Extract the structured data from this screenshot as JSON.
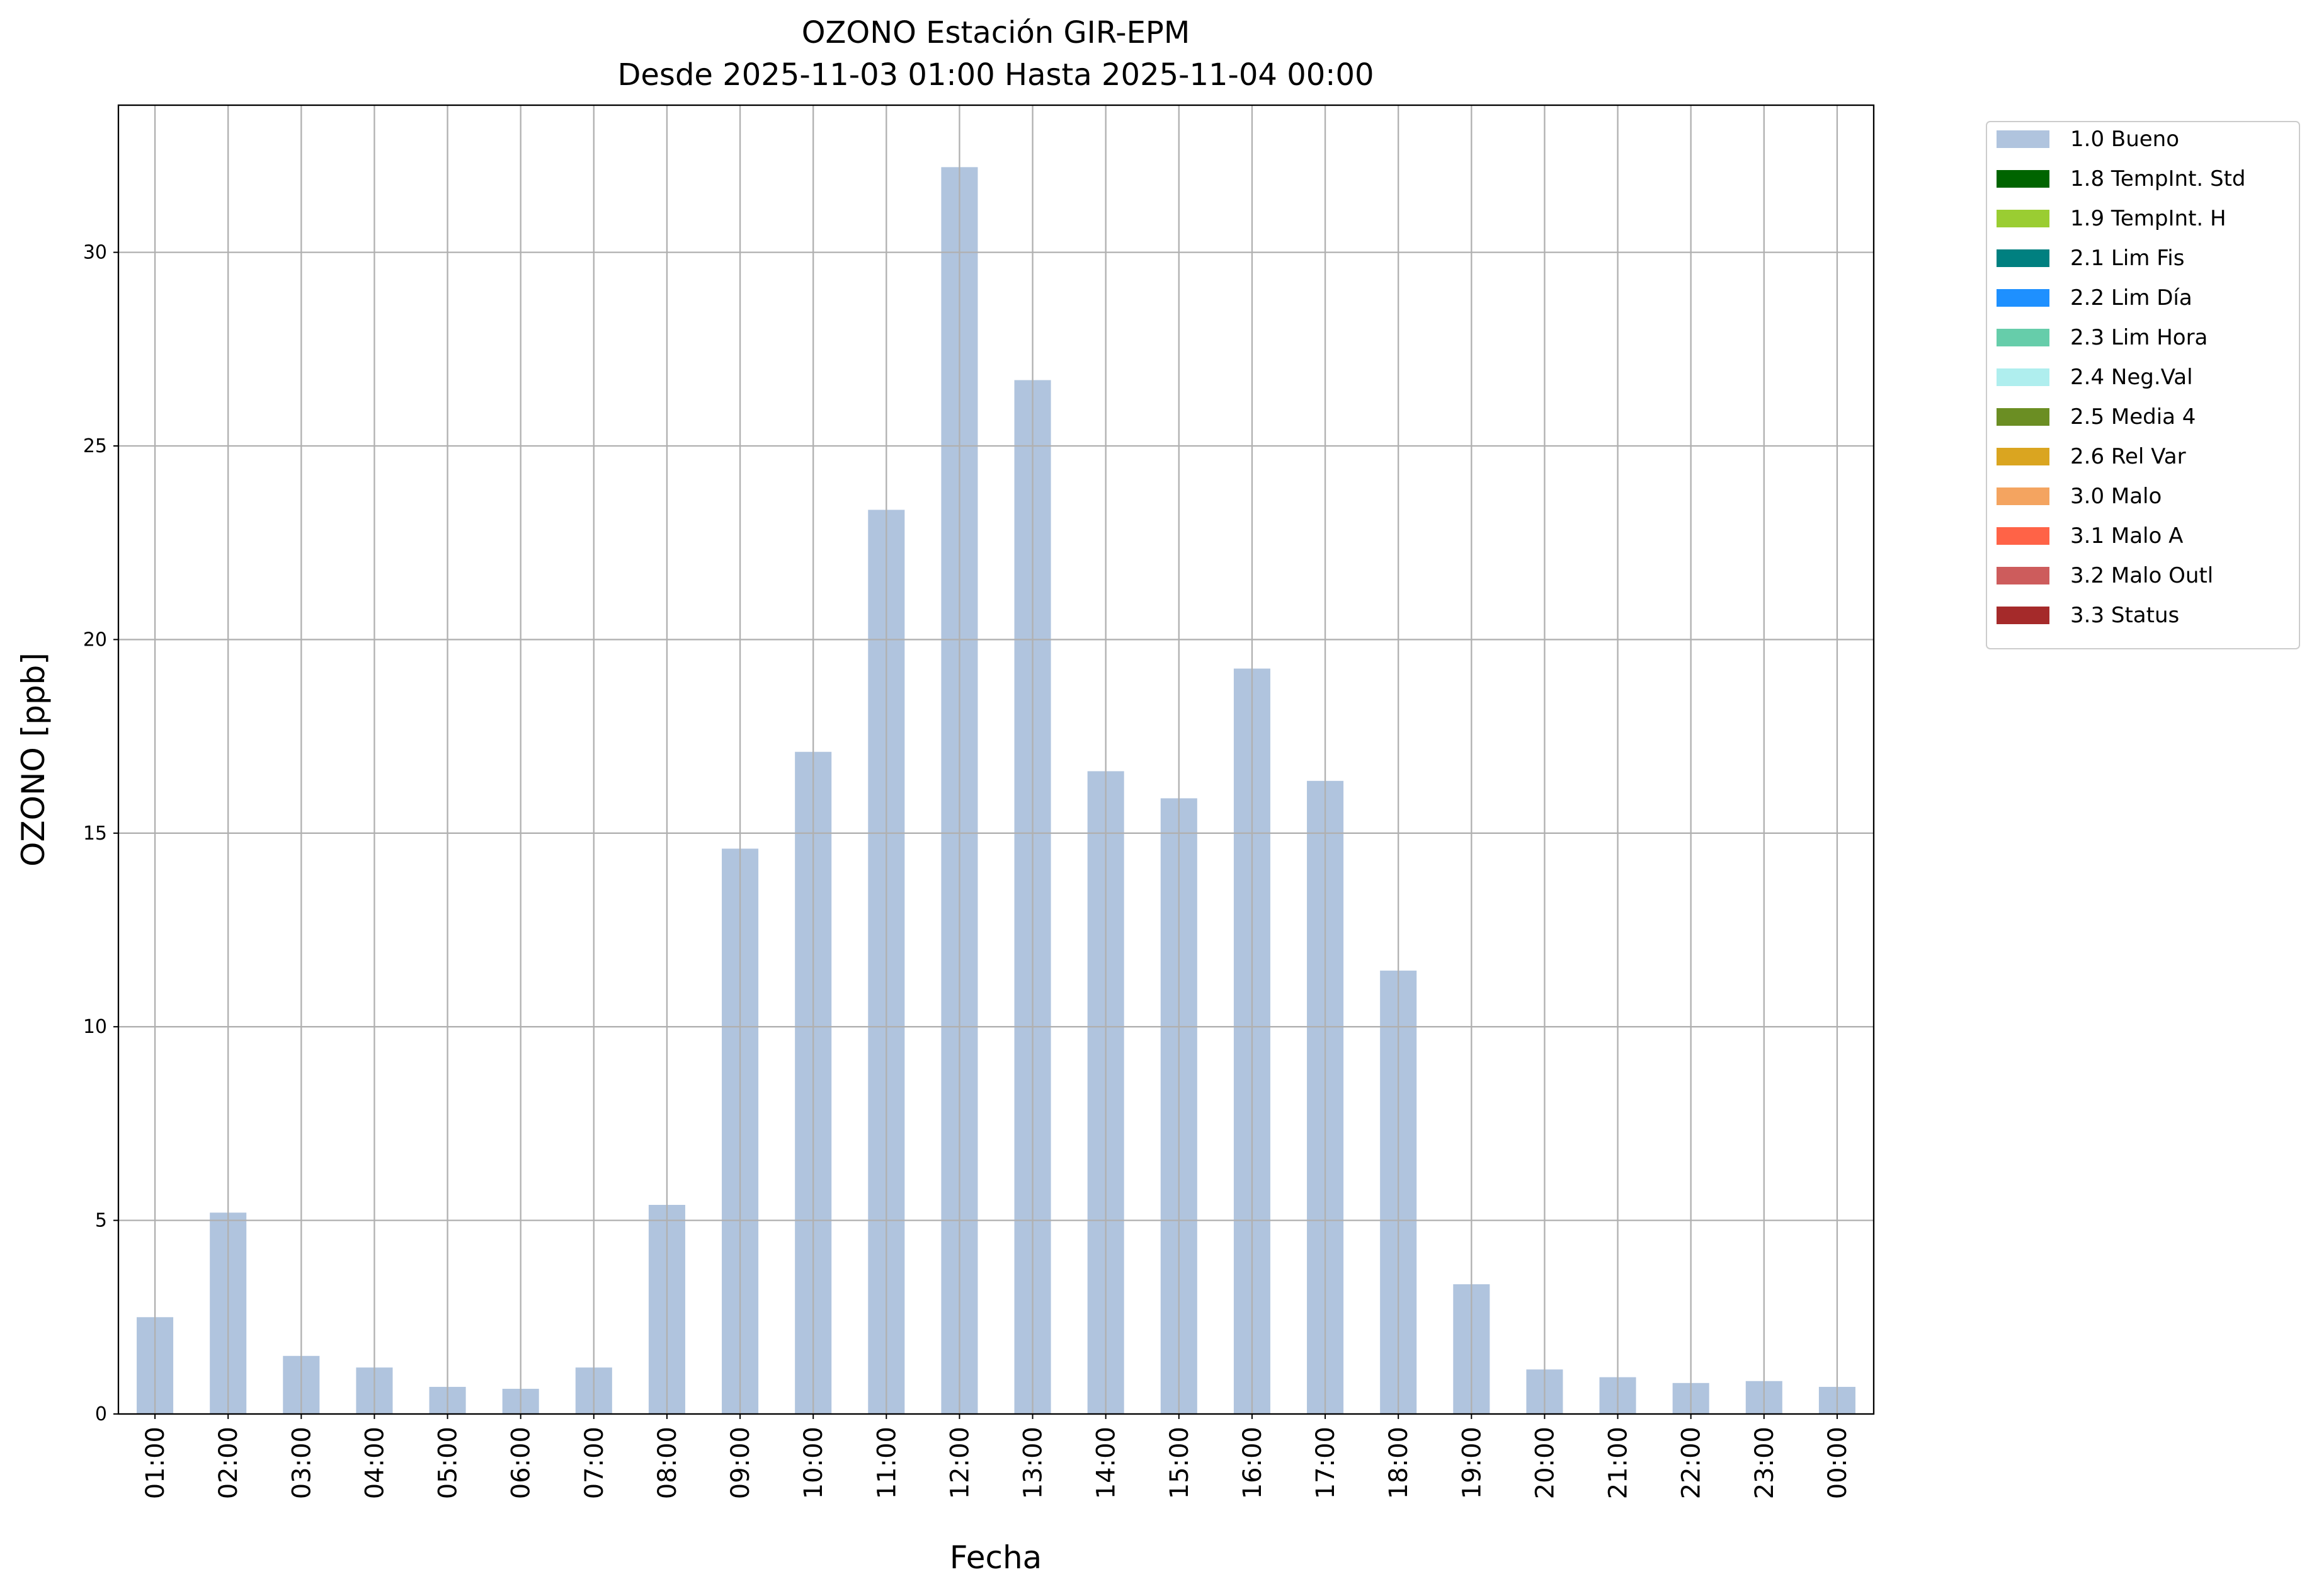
{
  "chart_data": {
    "type": "bar",
    "title": "OZONO Estación GIR-EPM",
    "subtitle": "Desde 2025-11-03 01:00 Hasta 2025-11-04 00:00",
    "x_label": "Fecha",
    "y_label": "OZONO [ppb]",
    "categories": [
      "01:00",
      "02:00",
      "03:00",
      "04:00",
      "05:00",
      "06:00",
      "07:00",
      "08:00",
      "09:00",
      "10:00",
      "11:00",
      "12:00",
      "13:00",
      "14:00",
      "15:00",
      "16:00",
      "17:00",
      "18:00",
      "19:00",
      "20:00",
      "21:00",
      "22:00",
      "23:00",
      "00:00"
    ],
    "series": [
      {
        "name": "1.0 Bueno",
        "color": "#b0c4de",
        "values": [
          2.5,
          5.2,
          1.5,
          1.2,
          0.7,
          0.65,
          1.2,
          5.4,
          14.6,
          17.1,
          23.35,
          32.2,
          26.7,
          16.6,
          15.9,
          19.25,
          16.35,
          11.45,
          3.35,
          1.15,
          0.95,
          0.8,
          0.85,
          0.7
        ]
      }
    ],
    "legend": [
      {
        "name": "1.0 Bueno",
        "color": "#b0c4de"
      },
      {
        "name": "1.8 TempInt. Std",
        "color": "#006400"
      },
      {
        "name": "1.9 TempInt. H",
        "color": "#9acd32"
      },
      {
        "name": "2.1 Lim Fis",
        "color": "#008080"
      },
      {
        "name": "2.2 Lim Día",
        "color": "#1e90ff"
      },
      {
        "name": "2.3 Lim Hora",
        "color": "#66cdaa"
      },
      {
        "name": "2.4 Neg.Val",
        "color": "#afeeee"
      },
      {
        "name": "2.5 Media 4",
        "color": "#6b8e23"
      },
      {
        "name": "2.6 Rel Var",
        "color": "#daa520"
      },
      {
        "name": "3.0 Malo",
        "color": "#f4a460"
      },
      {
        "name": "3.1 Malo A",
        "color": "#ff6347"
      },
      {
        "name": "3.2 Malo Outl",
        "color": "#cd5c5c"
      },
      {
        "name": "3.3 Status",
        "color": "#a52a2a"
      }
    ],
    "legend_position": "outside upper right",
    "ylim": [
      0,
      33.8
    ],
    "yticks": [
      0,
      5,
      10,
      15,
      20,
      25,
      30
    ],
    "grid": true
  }
}
